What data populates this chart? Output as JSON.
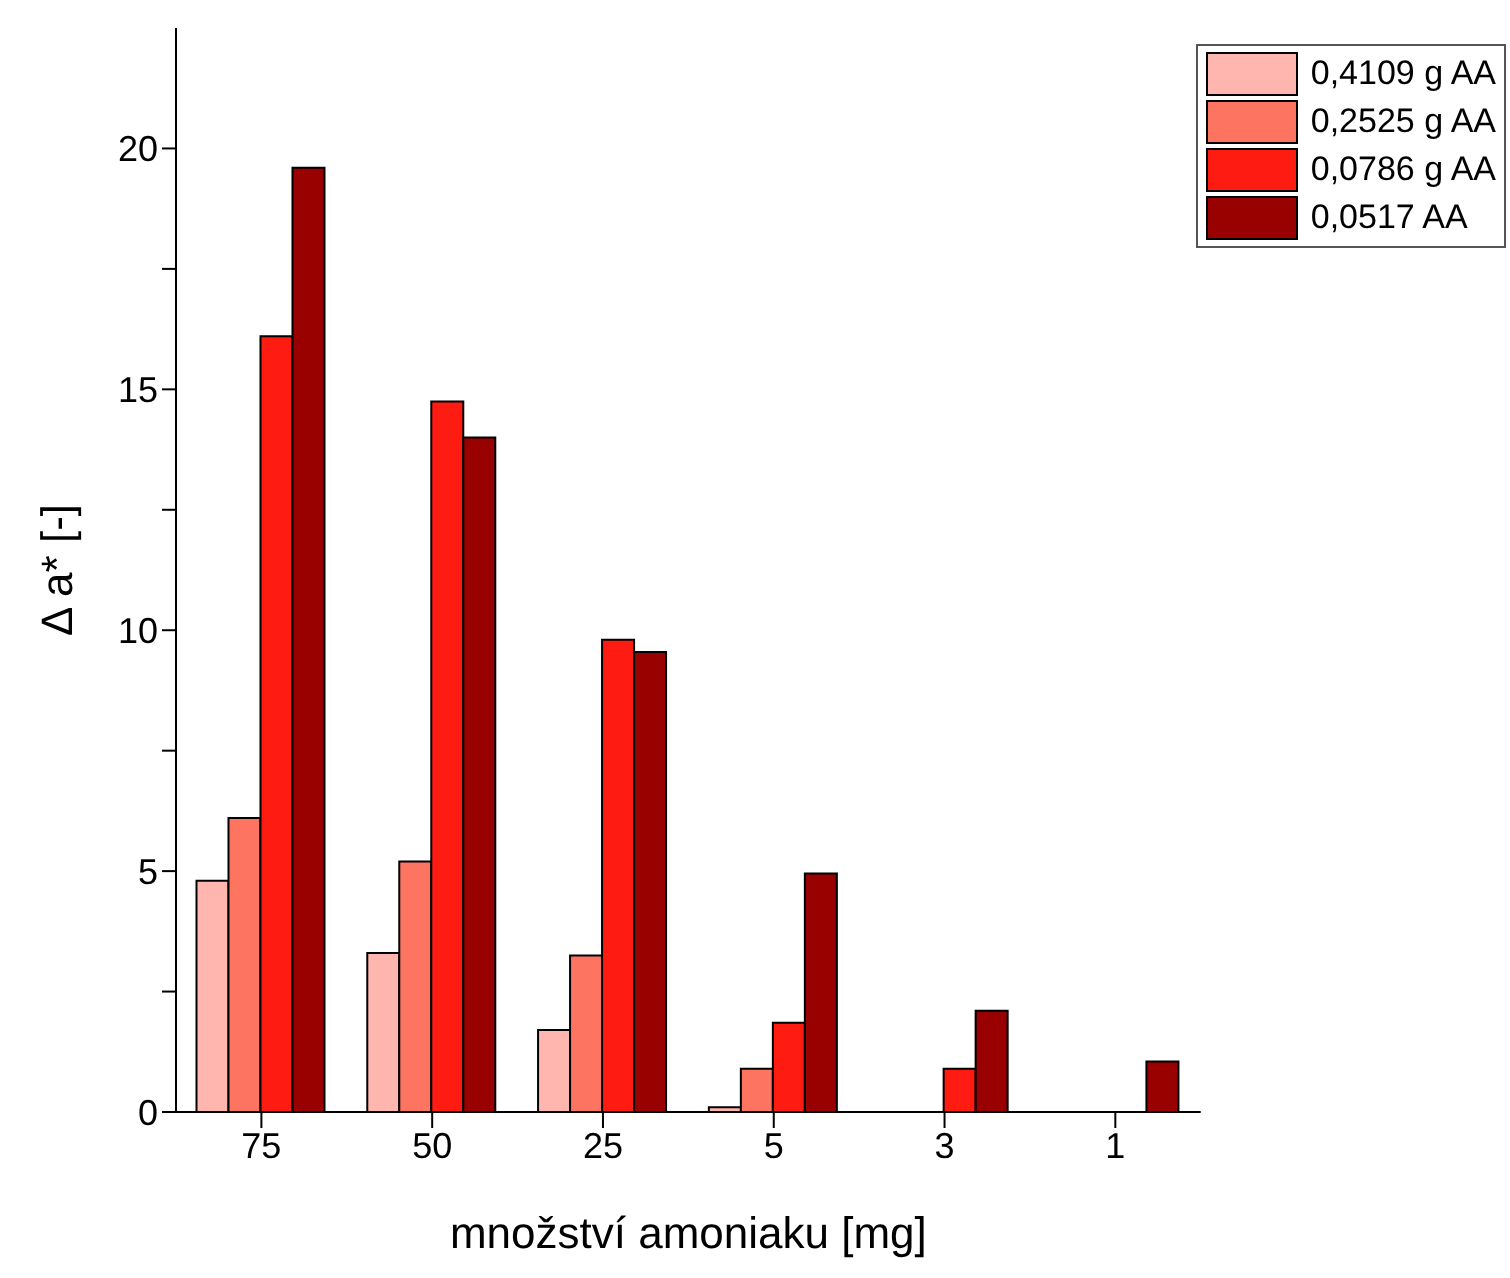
{
  "chart_data": {
    "type": "bar",
    "xlabel": "množství amoniaku [mg]",
    "ylabel": "Δ a* [-]",
    "categories": [
      "75",
      "50",
      "25",
      "5",
      "3",
      "1"
    ],
    "series": [
      {
        "name": "0,4109 g AA",
        "color": "#ffb6ae",
        "values": [
          4.8,
          3.3,
          1.7,
          0.1,
          0,
          0
        ]
      },
      {
        "name": "0,2525 g AA",
        "color": "#fd7560",
        "values": [
          6.1,
          5.2,
          3.25,
          0.9,
          0,
          0
        ]
      },
      {
        "name": "0,0786 g AA",
        "color": "#fe1b12",
        "values": [
          16.1,
          14.75,
          9.8,
          1.85,
          0.9,
          0
        ]
      },
      {
        "name": "0,0517 AA",
        "color": "#990000",
        "values": [
          19.6,
          14.0,
          9.55,
          4.95,
          2.1,
          1.05
        ]
      }
    ],
    "ylim": [
      0,
      22.5
    ],
    "yticks": [
      0,
      {
        "value": 2.5,
        "label": null
      },
      5,
      {
        "value": 7.5,
        "label": null
      },
      10,
      {
        "value": 12.5,
        "label": null
      },
      15,
      {
        "value": 17.5,
        "label": null
      },
      20
    ],
    "legend": "top right",
    "grid": false
  }
}
